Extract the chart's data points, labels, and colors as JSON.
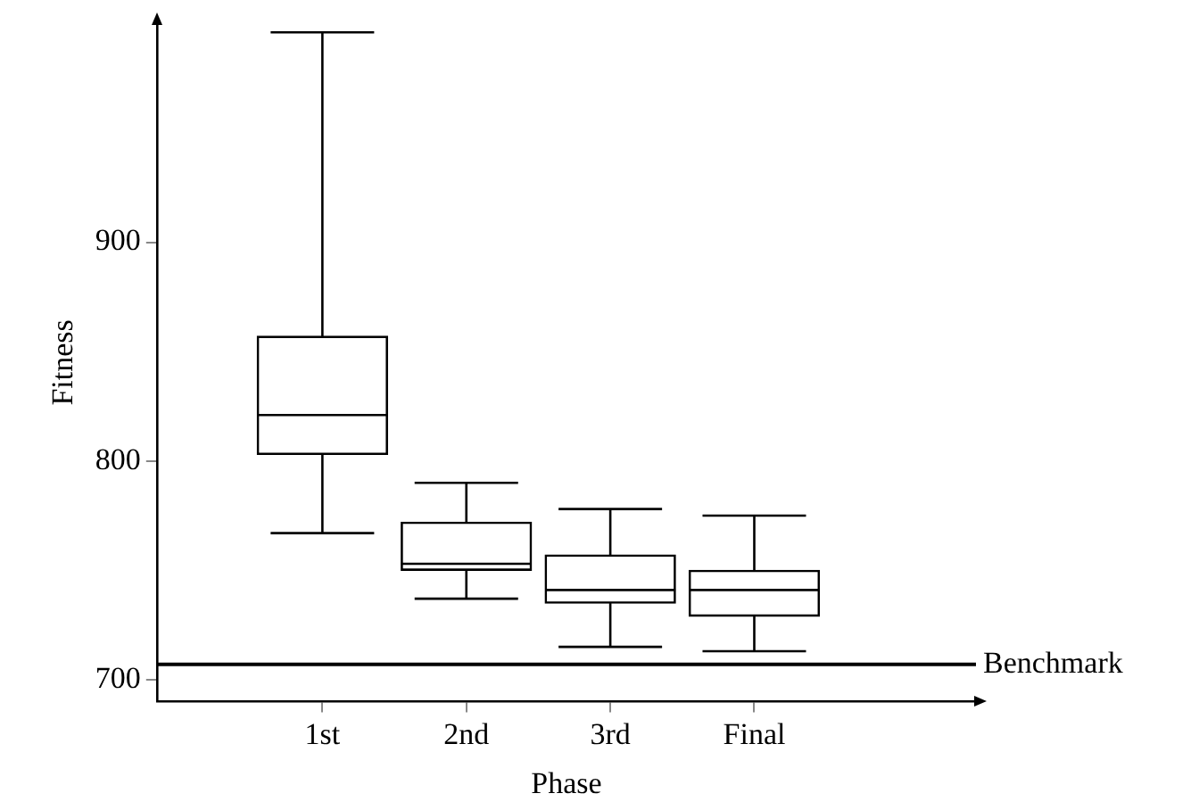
{
  "chart_data": {
    "type": "box",
    "xlabel": "Phase",
    "ylabel": "Fitness",
    "categories": [
      "1st",
      "2nd",
      "3rd",
      "Final"
    ],
    "boxes": [
      {
        "low": 767,
        "q1": 803,
        "median": 821,
        "q3": 857,
        "high": 996
      },
      {
        "low": 737,
        "q1": 750,
        "median": 753,
        "q3": 772,
        "high": 790
      },
      {
        "low": 715,
        "q1": 735,
        "median": 741,
        "q3": 757,
        "high": 778
      },
      {
        "low": 713,
        "q1": 729,
        "median": 741,
        "q3": 750,
        "high": 775
      }
    ],
    "ylim": [
      690,
      1000
    ],
    "yticks": [
      700,
      800,
      900
    ],
    "ref_lines": [
      {
        "axis": "y",
        "value": 707,
        "label": "Benchmark",
        "color": "#000000"
      }
    ],
    "grid": false,
    "legend": false
  }
}
